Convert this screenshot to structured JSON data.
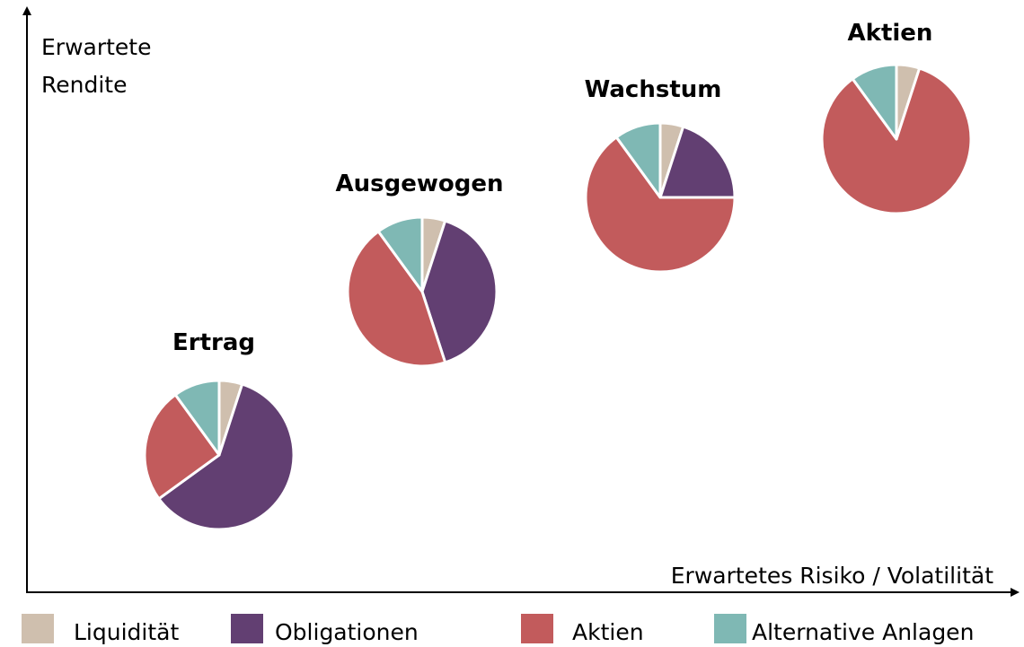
{
  "chart_data": {
    "type": "pie",
    "y_label": "Erwartete Rendite",
    "x_label": "Erwartetes Risiko / Volatilität",
    "categories": [
      "Liquidität",
      "Obligationen",
      "Aktien",
      "Alternative Anlagen"
    ],
    "colors": [
      "#cfbfae",
      "#623f72",
      "#c25b5c",
      "#7fb8b4"
    ],
    "pies": [
      {
        "title": "Ertrag",
        "values": [
          5,
          60,
          25,
          10
        ]
      },
      {
        "title": "Ausgewogen",
        "values": [
          5,
          40,
          45,
          10
        ]
      },
      {
        "title": "Wachstum",
        "values": [
          5,
          20,
          65,
          10
        ]
      },
      {
        "title": "Aktien",
        "values": [
          5,
          0,
          85,
          10
        ]
      }
    ]
  }
}
